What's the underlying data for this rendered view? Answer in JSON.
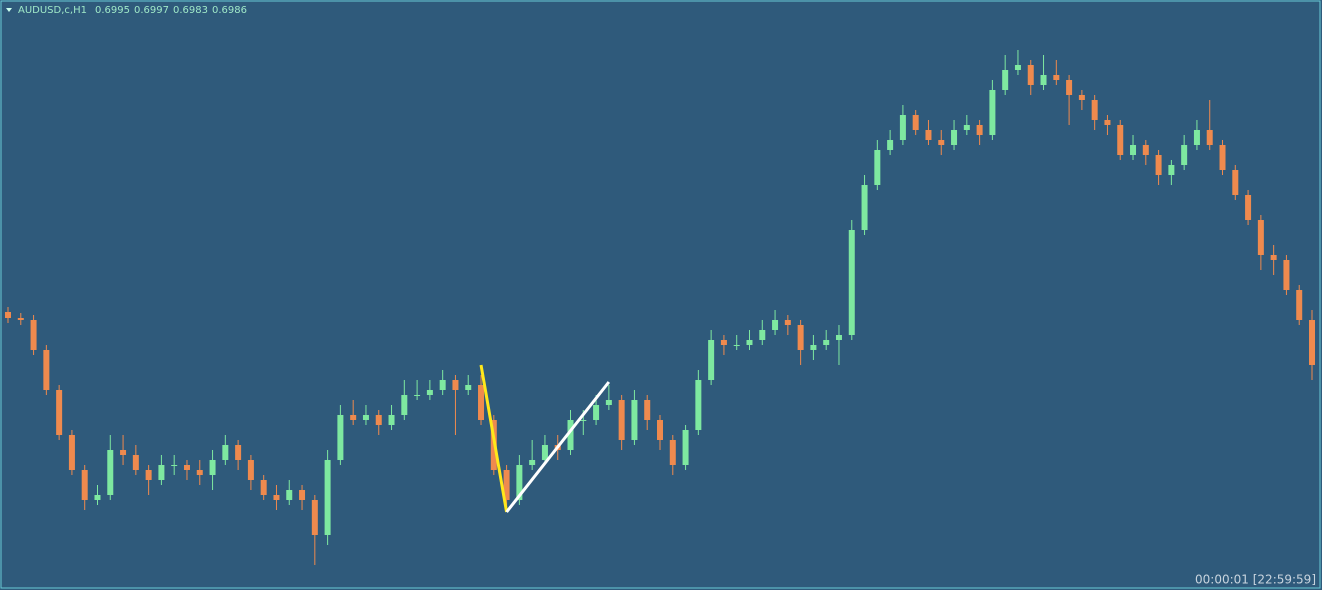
{
  "chart_data": {
    "type": "candlestick",
    "symbol": "AUDUSD,c,H1",
    "timer": "00:00:01 [22:59:59]",
    "up_color": "#7ee8a0",
    "down_color": "#ef8a4e",
    "background": "#2f5a7b",
    "ylim": [
      0.6941,
      0.7059
    ],
    "candles": [
      [
        0.69966,
        0.69976,
        0.69944,
        0.69954
      ],
      [
        0.69954,
        0.69964,
        0.6994,
        0.6995
      ],
      [
        0.6995,
        0.6996,
        0.6988,
        0.6989
      ],
      [
        0.6989,
        0.699,
        0.698,
        0.6981
      ],
      [
        0.6981,
        0.6982,
        0.6971,
        0.6972
      ],
      [
        0.6972,
        0.6973,
        0.6964,
        0.6965
      ],
      [
        0.6965,
        0.6966,
        0.6957,
        0.6959
      ],
      [
        0.6959,
        0.6962,
        0.6958,
        0.696
      ],
      [
        0.696,
        0.6972,
        0.6959,
        0.6969
      ],
      [
        0.6969,
        0.6972,
        0.6966,
        0.6968
      ],
      [
        0.6968,
        0.697,
        0.6964,
        0.6965
      ],
      [
        0.6965,
        0.6966,
        0.696,
        0.6963
      ],
      [
        0.6963,
        0.6968,
        0.6962,
        0.6966
      ],
      [
        0.6966,
        0.6968,
        0.6964,
        0.6966
      ],
      [
        0.6966,
        0.6967,
        0.6963,
        0.6965
      ],
      [
        0.6965,
        0.6967,
        0.6962,
        0.6964
      ],
      [
        0.6964,
        0.6969,
        0.6961,
        0.6967
      ],
      [
        0.6967,
        0.6972,
        0.6966,
        0.697
      ],
      [
        0.697,
        0.6971,
        0.6965,
        0.6967
      ],
      [
        0.6967,
        0.6968,
        0.6961,
        0.6963
      ],
      [
        0.6963,
        0.6964,
        0.6959,
        0.696
      ],
      [
        0.696,
        0.6962,
        0.6957,
        0.6959
      ],
      [
        0.6959,
        0.6963,
        0.6958,
        0.6961
      ],
      [
        0.6961,
        0.6962,
        0.6957,
        0.6959
      ],
      [
        0.6959,
        0.696,
        0.6946,
        0.6952
      ],
      [
        0.6952,
        0.6969,
        0.695,
        0.6967
      ],
      [
        0.6967,
        0.6978,
        0.6966,
        0.6976
      ],
      [
        0.6976,
        0.6979,
        0.6974,
        0.6975
      ],
      [
        0.6975,
        0.6978,
        0.6974,
        0.6976
      ],
      [
        0.6976,
        0.6977,
        0.6972,
        0.6974
      ],
      [
        0.6974,
        0.6978,
        0.6973,
        0.6976
      ],
      [
        0.6976,
        0.6983,
        0.6975,
        0.698
      ],
      [
        0.698,
        0.6983,
        0.6979,
        0.698
      ],
      [
        0.698,
        0.6983,
        0.6979,
        0.6981
      ],
      [
        0.6981,
        0.6985,
        0.698,
        0.6983
      ],
      [
        0.6983,
        0.6984,
        0.6972,
        0.6981
      ],
      [
        0.6981,
        0.6984,
        0.698,
        0.6982
      ],
      [
        0.6982,
        0.6984,
        0.6974,
        0.6975
      ],
      [
        0.6975,
        0.6976,
        0.6964,
        0.6965
      ],
      [
        0.6965,
        0.6966,
        0.6957,
        0.6959
      ],
      [
        0.6959,
        0.6968,
        0.6958,
        0.6966
      ],
      [
        0.6966,
        0.6971,
        0.6965,
        0.6967
      ],
      [
        0.6967,
        0.6972,
        0.6966,
        0.697
      ],
      [
        0.697,
        0.6972,
        0.6967,
        0.6969
      ],
      [
        0.6969,
        0.6977,
        0.6968,
        0.6975
      ],
      [
        0.6975,
        0.6977,
        0.6972,
        0.6975
      ],
      [
        0.6975,
        0.698,
        0.6974,
        0.6978
      ],
      [
        0.6978,
        0.6982,
        0.6977,
        0.6979
      ],
      [
        0.6979,
        0.698,
        0.6969,
        0.6971
      ],
      [
        0.6971,
        0.6981,
        0.697,
        0.6979
      ],
      [
        0.6979,
        0.698,
        0.6973,
        0.6975
      ],
      [
        0.6975,
        0.6976,
        0.6969,
        0.6971
      ],
      [
        0.6971,
        0.6972,
        0.6964,
        0.6966
      ],
      [
        0.6966,
        0.6974,
        0.6965,
        0.6973
      ],
      [
        0.6973,
        0.6985,
        0.6972,
        0.6983
      ],
      [
        0.6983,
        0.6993,
        0.6982,
        0.6991
      ],
      [
        0.6991,
        0.6992,
        0.6988,
        0.699
      ],
      [
        0.699,
        0.6992,
        0.6989,
        0.699
      ],
      [
        0.699,
        0.6993,
        0.6989,
        0.6991
      ],
      [
        0.6991,
        0.6995,
        0.699,
        0.6993
      ],
      [
        0.6993,
        0.6997,
        0.6992,
        0.6995
      ],
      [
        0.6995,
        0.6996,
        0.6992,
        0.6994
      ],
      [
        0.6994,
        0.6995,
        0.6986,
        0.6989
      ],
      [
        0.6989,
        0.6992,
        0.6987,
        0.699
      ],
      [
        0.699,
        0.6993,
        0.6989,
        0.6991
      ],
      [
        0.6991,
        0.6994,
        0.6986,
        0.6992
      ],
      [
        0.6992,
        0.7015,
        0.6991,
        0.7013
      ],
      [
        0.7013,
        0.7024,
        0.7012,
        0.7022
      ],
      [
        0.7022,
        0.7031,
        0.7021,
        0.7029
      ],
      [
        0.7029,
        0.7033,
        0.7028,
        0.7031
      ],
      [
        0.7031,
        0.7038,
        0.703,
        0.7036
      ],
      [
        0.7036,
        0.7037,
        0.7032,
        0.7033
      ],
      [
        0.7033,
        0.7035,
        0.703,
        0.7031
      ],
      [
        0.7031,
        0.7033,
        0.7028,
        0.703
      ],
      [
        0.703,
        0.7035,
        0.7029,
        0.7033
      ],
      [
        0.7033,
        0.7036,
        0.7032,
        0.7034
      ],
      [
        0.7034,
        0.7035,
        0.703,
        0.7032
      ],
      [
        0.7032,
        0.7043,
        0.7031,
        0.7041
      ],
      [
        0.7041,
        0.7048,
        0.704,
        0.7045
      ],
      [
        0.7045,
        0.7049,
        0.7044,
        0.7046
      ],
      [
        0.7046,
        0.7047,
        0.704,
        0.7042
      ],
      [
        0.7042,
        0.7048,
        0.7041,
        0.7044
      ],
      [
        0.7044,
        0.7047,
        0.7042,
        0.7043
      ],
      [
        0.7043,
        0.7044,
        0.7034,
        0.704
      ],
      [
        0.704,
        0.7041,
        0.7037,
        0.7039
      ],
      [
        0.7039,
        0.704,
        0.7033,
        0.7035
      ],
      [
        0.7035,
        0.7036,
        0.7032,
        0.7034
      ],
      [
        0.7034,
        0.7035,
        0.7027,
        0.7028
      ],
      [
        0.7028,
        0.7032,
        0.7027,
        0.703
      ],
      [
        0.703,
        0.7031,
        0.7026,
        0.7028
      ],
      [
        0.7028,
        0.7029,
        0.7022,
        0.7024
      ],
      [
        0.7024,
        0.7027,
        0.7022,
        0.7026
      ],
      [
        0.7026,
        0.7032,
        0.7025,
        0.703
      ],
      [
        0.703,
        0.7035,
        0.7029,
        0.7033
      ],
      [
        0.7033,
        0.7039,
        0.7029,
        0.703
      ],
      [
        0.703,
        0.7031,
        0.7024,
        0.7025
      ],
      [
        0.7025,
        0.7026,
        0.7019,
        0.702
      ],
      [
        0.702,
        0.7021,
        0.7014,
        0.7015
      ],
      [
        0.7015,
        0.7016,
        0.7005,
        0.7008
      ],
      [
        0.7008,
        0.701,
        0.7004,
        0.7007
      ],
      [
        0.7007,
        0.7008,
        0.7,
        0.7001
      ],
      [
        0.7001,
        0.7002,
        0.6994,
        0.6995
      ],
      [
        0.6995,
        0.6997,
        0.6983,
        0.6986
      ]
    ],
    "lines": [
      {
        "color": "#ffe81a",
        "x": [
          37,
          39
        ],
        "y": [
          0.6986,
          0.69566
        ]
      },
      {
        "color": "#ffffff",
        "x": [
          39,
          47
        ],
        "y": [
          0.69566,
          0.69826
        ]
      }
    ]
  }
}
